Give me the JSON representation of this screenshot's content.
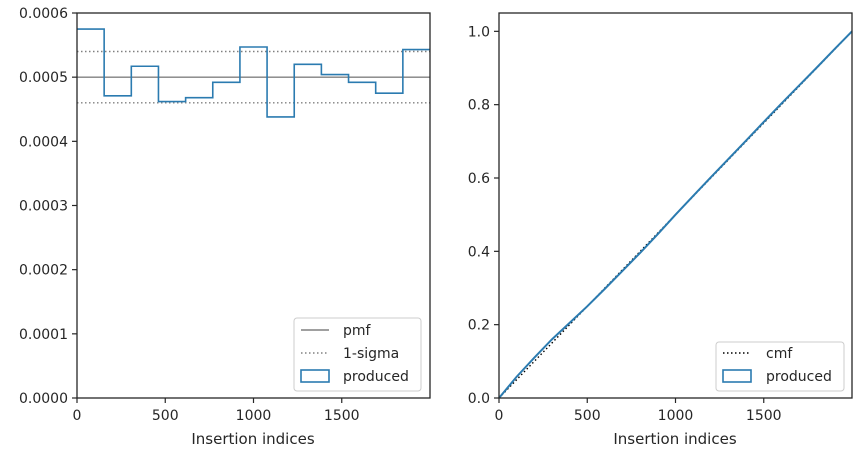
{
  "colors": {
    "produced": "#2b7bb0",
    "pmf": "#808080",
    "sigma": "#808080",
    "cmf": "#000000",
    "axes": "#262626"
  },
  "chart_data": [
    {
      "type": "step",
      "xlabel": "Insertion indices",
      "ylabel": "",
      "xlim": [
        0,
        2000
      ],
      "ylim": [
        0,
        0.0006
      ],
      "xticks": [
        0,
        500,
        1000,
        1500
      ],
      "xtick_labels": [
        "0",
        "500",
        "1000",
        "1500"
      ],
      "yticks": [
        0,
        0.0001,
        0.0002,
        0.0003,
        0.0004,
        0.0005,
        0.0006
      ],
      "ytick_labels": [
        "0.0000",
        "0.0001",
        "0.0002",
        "0.0003",
        "0.0004",
        "0.0005",
        "0.0006"
      ],
      "pmf": 0.0005,
      "sigma_band": [
        0.00046,
        0.00054
      ],
      "bin_edges": [
        0,
        153.8,
        307.7,
        461.5,
        615.4,
        769.2,
        923.1,
        1076.9,
        1230.8,
        1384.6,
        1538.5,
        1692.3,
        1846.2,
        2000
      ],
      "values": [
        0.000575,
        0.000471,
        0.000517,
        0.000462,
        0.000468,
        0.000492,
        0.000547,
        0.000438,
        0.00052,
        0.000504,
        0.000492,
        0.000475,
        0.000543
      ],
      "legend": {
        "position": "lower right",
        "entries": [
          {
            "label": "pmf",
            "style": "solid-line"
          },
          {
            "label": "1-sigma",
            "style": "dotted-line"
          },
          {
            "label": "produced",
            "style": "box"
          }
        ]
      }
    },
    {
      "type": "line",
      "xlabel": "Insertion indices",
      "ylabel": "",
      "xlim": [
        0,
        2000
      ],
      "ylim": [
        0,
        1.05
      ],
      "xticks": [
        0,
        500,
        1000,
        1500
      ],
      "xtick_labels": [
        "0",
        "500",
        "1000",
        "1500"
      ],
      "yticks": [
        0,
        0.2,
        0.4,
        0.6,
        0.8,
        1.0
      ],
      "ytick_labels": [
        "0.0",
        "0.2",
        "0.4",
        "0.6",
        "0.8",
        "1.0"
      ],
      "cmf": {
        "x": [
          0,
          2000
        ],
        "y": [
          0,
          1.0
        ]
      },
      "produced": {
        "x": [
          0,
          100,
          200,
          300,
          400,
          500,
          600,
          700,
          800,
          900,
          1000,
          1100,
          1200,
          1300,
          1400,
          1500,
          1600,
          1700,
          1800,
          1900,
          2000
        ],
        "y": [
          0,
          0.058,
          0.11,
          0.16,
          0.205,
          0.25,
          0.298,
          0.347,
          0.396,
          0.447,
          0.5,
          0.551,
          0.602,
          0.652,
          0.702,
          0.753,
          0.803,
          0.852,
          0.901,
          0.951,
          1.0
        ]
      },
      "legend": {
        "position": "lower right",
        "entries": [
          {
            "label": "cmf",
            "style": "dotted-line"
          },
          {
            "label": "produced",
            "style": "box"
          }
        ]
      }
    }
  ]
}
